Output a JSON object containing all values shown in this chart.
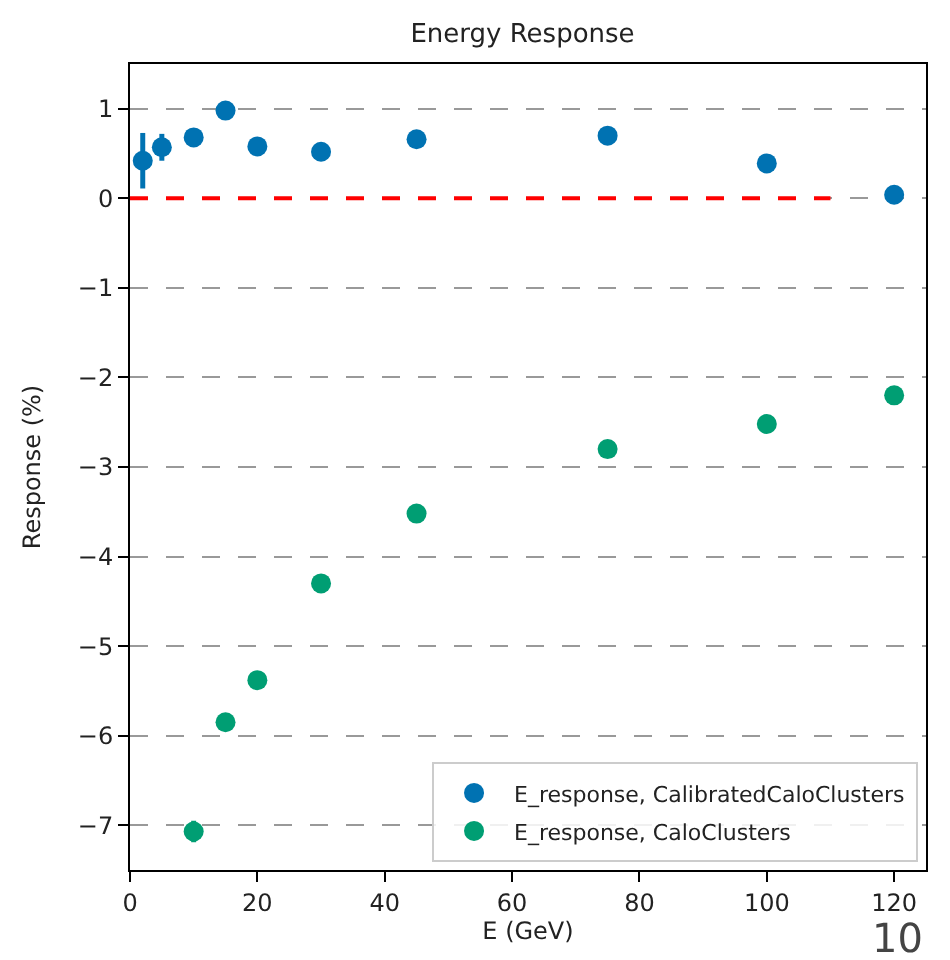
{
  "chart_data": {
    "type": "scatter",
    "title": "Energy Response",
    "xlabel": "E (GeV)",
    "ylabel": "Response (%)",
    "xlim": [
      0,
      125
    ],
    "ylim": [
      -7.5,
      1.5
    ],
    "xticks": [
      0,
      20,
      40,
      60,
      80,
      100,
      120
    ],
    "yticks": [
      {
        "value": -7,
        "label": "−7"
      },
      {
        "value": -6,
        "label": "−6"
      },
      {
        "value": -5,
        "label": "−5"
      },
      {
        "value": -4,
        "label": "−4"
      },
      {
        "value": -3,
        "label": "−3"
      },
      {
        "value": -2,
        "label": "−2"
      },
      {
        "value": -1,
        "label": "−1"
      },
      0,
      1
    ],
    "grid": "y",
    "legend": "bottom right",
    "marker": "circle",
    "series": [
      {
        "name": "E_response, CalibratedCaloClusters",
        "color": "#0072b2",
        "x": [
          2,
          5,
          10,
          15,
          20,
          30,
          45,
          75,
          100,
          120
        ],
        "values": [
          0.42,
          0.57,
          0.68,
          0.98,
          0.58,
          0.52,
          0.66,
          0.7,
          0.39,
          0.04
        ],
        "errors": [
          0.31,
          0.15,
          0.1,
          0.05,
          null,
          null,
          null,
          null,
          null,
          null
        ]
      },
      {
        "name": "E_response, CaloClusters",
        "color": "#009e73",
        "x": [
          10,
          15,
          20,
          30,
          45,
          75,
          100,
          120
        ],
        "values": [
          -7.07,
          -5.85,
          -5.38,
          -4.3,
          -3.52,
          -2.8,
          -2.52,
          -2.2
        ],
        "errors": [
          0.12,
          0.08,
          null,
          null,
          null,
          null,
          null,
          null
        ]
      },
      {
        "type": "line",
        "color": "#ff0000",
        "line_style": "dashed",
        "marker": "none",
        "x": [
          0,
          110
        ],
        "values": [
          0,
          0
        ]
      }
    ],
    "annotations": [
      "10"
    ]
  }
}
